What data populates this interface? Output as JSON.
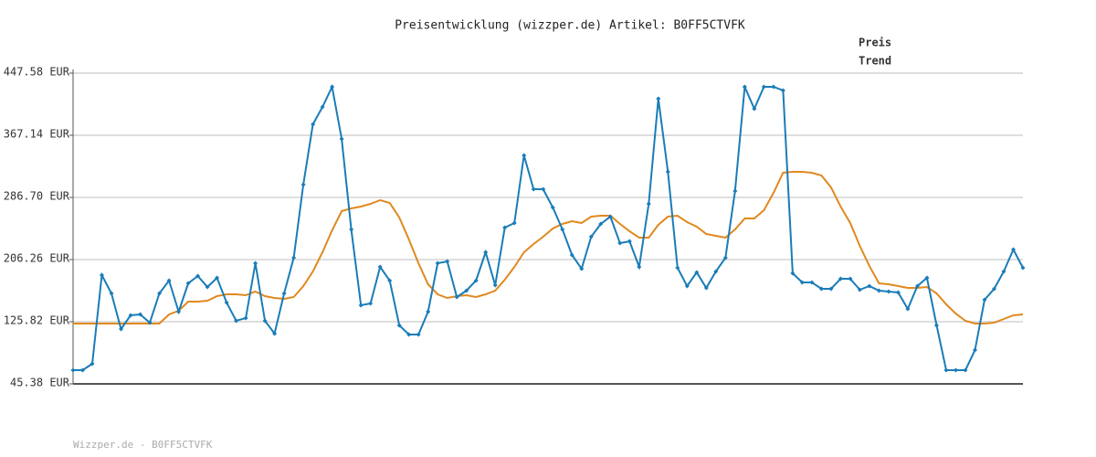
{
  "chart_data": {
    "type": "line",
    "title": "Preisentwicklung (wizzper.de) Artikel: B0FF5CTVFK",
    "footer": "Wizzper.de - B0FF5CTVFK",
    "ylim": [
      45.38,
      447.58
    ],
    "yticks": [
      {
        "value": 45.38,
        "label": "45.38 EUR"
      },
      {
        "value": 125.82,
        "label": "125.82 EUR"
      },
      {
        "value": 206.26,
        "label": "206.26 EUR"
      },
      {
        "value": 286.7,
        "label": "286.70 EUR"
      },
      {
        "value": 367.14,
        "label": "367.14 EUR"
      },
      {
        "value": 447.58,
        "label": "447.58 EUR"
      }
    ],
    "grid": true,
    "legend": "top-right",
    "series": [
      {
        "name": "Preis",
        "color": "#1a7cb8",
        "markers": true,
        "values": [
          63.1,
          63.1,
          71.4,
          186.2,
          162.5,
          116.4,
          134.1,
          135.3,
          124.6,
          162.5,
          179.1,
          138.8,
          175.5,
          185.0,
          170.8,
          182.6,
          150.7,
          127.0,
          130.6,
          201.5,
          127.0,
          110.4,
          162.5,
          208.6,
          303.3,
          381.3,
          403.8,
          429.8,
          362.4,
          245.3,
          147.1,
          149.5,
          196.8,
          179.1,
          121.1,
          109.3,
          109.3,
          138.8,
          201.5,
          203.9,
          157.8,
          166.0,
          179.1,
          215.7,
          173.1,
          247.7,
          253.6,
          341.1,
          297.4,
          297.4,
          273.7,
          245.3,
          212.2,
          194.4,
          235.8,
          252.4,
          261.9,
          227.6,
          229.9,
          196.8,
          278.4,
          414.5,
          319.8,
          195.6,
          172.0,
          189.7,
          169.6,
          190.9,
          208.6,
          295.0,
          429.8,
          401.5,
          429.8,
          429.8,
          425.1,
          188.5,
          176.7,
          176.7,
          168.4,
          168.4,
          181.4,
          181.4,
          167.2,
          172.0,
          166.0,
          164.9,
          163.7,
          142.4,
          172.0,
          182.6,
          121.1,
          63.1,
          63.1,
          63.1,
          89.2,
          154.2,
          168.4,
          190.9,
          219.3,
          195.6
        ]
      },
      {
        "name": "Trend",
        "color": "#e0891f",
        "markers": false,
        "values": [
          123.5,
          123.5,
          123.5,
          123.5,
          123.5,
          123.5,
          123.5,
          123.5,
          123.5,
          123.5,
          135.3,
          140.0,
          151.8,
          151.8,
          153.0,
          158.9,
          161.3,
          161.3,
          160.1,
          164.9,
          158.9,
          156.6,
          155.4,
          157.8,
          171.9,
          190.9,
          215.7,
          244.1,
          268.9,
          272.5,
          274.9,
          278.4,
          283.2,
          279.6,
          260.7,
          232.3,
          201.5,
          174.3,
          161.3,
          156.6,
          158.9,
          160.1,
          157.8,
          161.3,
          166.0,
          180.2,
          196.8,
          215.7,
          226.4,
          235.8,
          246.5,
          252.4,
          256.0,
          253.6,
          261.9,
          263.1,
          263.1,
          252.4,
          242.9,
          234.6,
          234.6,
          251.2,
          261.9,
          263.1,
          254.8,
          248.8,
          239.4,
          237.0,
          234.6,
          245.3,
          259.5,
          259.5,
          270.1,
          292.6,
          318.6,
          319.8,
          319.8,
          318.6,
          315.1,
          299.7,
          274.9,
          253.6,
          224.0,
          197.9,
          175.5,
          174.3,
          171.9,
          169.6,
          169.6,
          170.8,
          162.5,
          148.3,
          136.4,
          127.0,
          123.5,
          123.5,
          124.6,
          129.4,
          134.1,
          135.3
        ]
      }
    ]
  }
}
